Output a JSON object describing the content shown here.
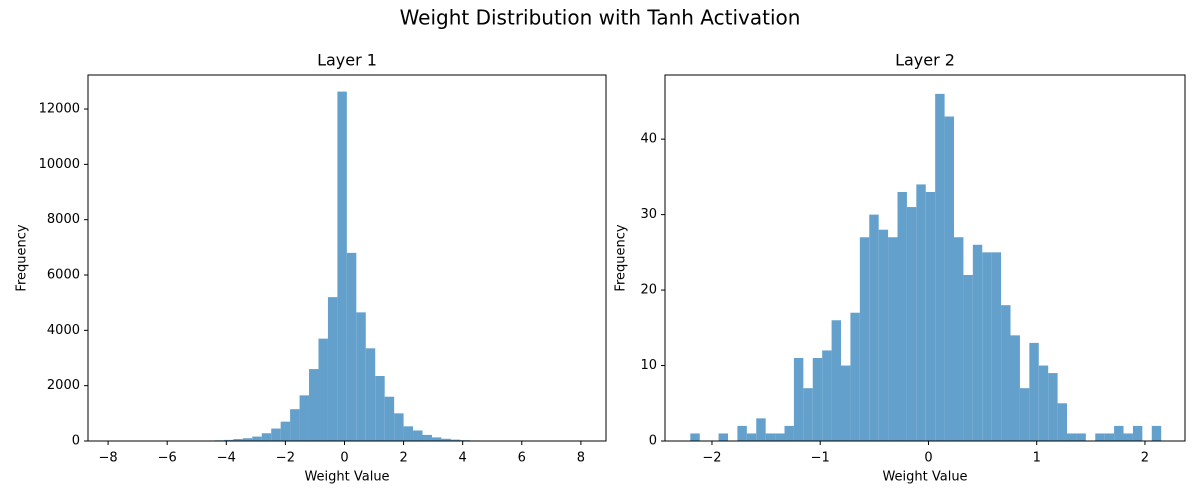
{
  "title": "Weight Distribution with Tanh Activation",
  "chart_data": [
    {
      "type": "histogram",
      "title": "Layer 1",
      "xlabel": "Weight Value",
      "ylabel": "Frequency",
      "color": "#63a0cb",
      "bins": [
        -7.92,
        -7.6,
        -7.28,
        -6.96,
        -6.64,
        -6.32,
        -6.0,
        -5.68,
        -5.36,
        -5.04,
        -4.72,
        -4.4,
        -4.08,
        -3.76,
        -3.44,
        -3.12,
        -2.8,
        -2.48,
        -2.16,
        -1.84,
        -1.52,
        -1.2,
        -0.88,
        -0.56,
        -0.24,
        0.08,
        0.4,
        0.72,
        1.04,
        1.36,
        1.68,
        2.0,
        2.32,
        2.64,
        2.96,
        3.28,
        3.6,
        3.92,
        4.24,
        4.56,
        4.88,
        5.2,
        5.52,
        5.84,
        6.16,
        6.48,
        6.8,
        7.12,
        7.44,
        7.76,
        8.08
      ],
      "counts": [
        1,
        0,
        1,
        2,
        2,
        3,
        3,
        4,
        5,
        8,
        15,
        25,
        40,
        70,
        100,
        160,
        280,
        450,
        700,
        1150,
        1650,
        2600,
        3700,
        5200,
        12630,
        6800,
        4650,
        3350,
        2350,
        1600,
        1000,
        530,
        380,
        220,
        130,
        80,
        50,
        30,
        20,
        12,
        6,
        4,
        3,
        2,
        2,
        1,
        1,
        0,
        1,
        1
      ],
      "xlim": [
        -8.68,
        8.85
      ],
      "ylim": [
        0,
        13230
      ],
      "xticks": [
        {
          "value": -8,
          "label": "−8"
        },
        {
          "value": -6,
          "label": "−6"
        },
        {
          "value": -4,
          "label": "−4"
        },
        {
          "value": -2,
          "label": "−2"
        },
        0,
        2,
        4,
        6,
        8
      ],
      "yticks": [
        0,
        2000,
        4000,
        6000,
        8000,
        10000,
        12000
      ]
    },
    {
      "type": "histogram",
      "title": "Layer 2",
      "xlabel": "Weight Value",
      "ylabel": "Frequency",
      "color": "#63a0cb",
      "bins": [
        -2.2,
        -2.113,
        -2.026,
        -1.939,
        -1.852,
        -1.765,
        -1.678,
        -1.591,
        -1.504,
        -1.417,
        -1.33,
        -1.243,
        -1.156,
        -1.069,
        -0.982,
        -0.895,
        -0.808,
        -0.721,
        -0.634,
        -0.547,
        -0.46,
        -0.373,
        -0.286,
        -0.199,
        -0.112,
        -0.025,
        0.062,
        0.149,
        0.236,
        0.323,
        0.41,
        0.497,
        0.584,
        0.671,
        0.758,
        0.845,
        0.932,
        1.019,
        1.106,
        1.193,
        1.28,
        1.367,
        1.454,
        1.541,
        1.628,
        1.715,
        1.802,
        1.889,
        1.976,
        2.063,
        2.15
      ],
      "counts": [
        1,
        0,
        0,
        1,
        0,
        2,
        1,
        3,
        1,
        1,
        2,
        11,
        7,
        11,
        12,
        16,
        10,
        17,
        27,
        30,
        28,
        27,
        33,
        31,
        34,
        33,
        46,
        43,
        27,
        22,
        26,
        25,
        25,
        18,
        14,
        7,
        13,
        10,
        9,
        5,
        1,
        1,
        0,
        1,
        1,
        2,
        1,
        2,
        0,
        2
      ],
      "xlim": [
        -2.434,
        2.37
      ],
      "ylim": [
        0,
        48.5
      ],
      "xticks": [
        {
          "value": -2,
          "label": "−2"
        },
        {
          "value": -1,
          "label": "−1"
        },
        0,
        1,
        2
      ],
      "yticks": [
        0,
        10,
        20,
        30,
        40
      ]
    }
  ]
}
